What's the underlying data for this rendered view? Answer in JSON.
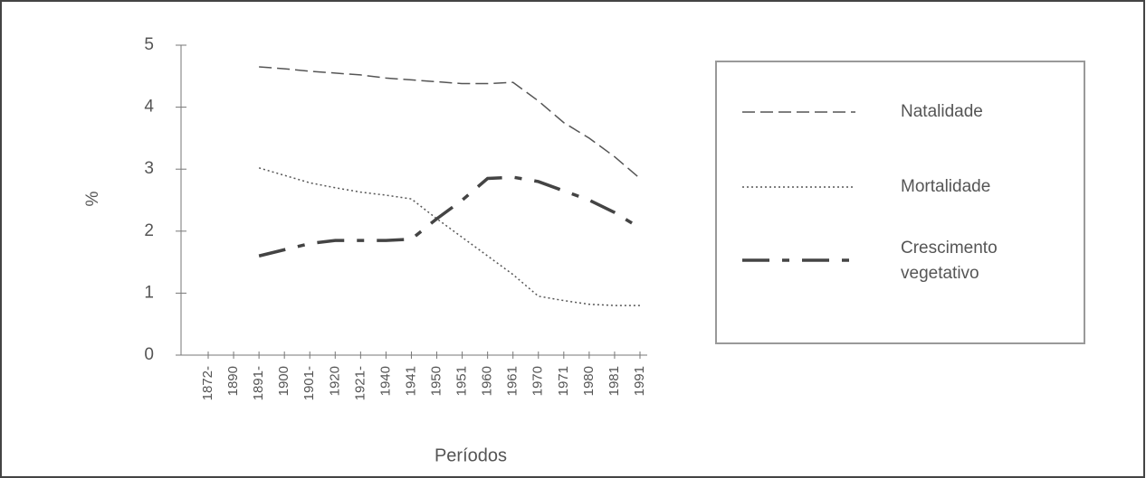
{
  "chart_data": {
    "type": "line",
    "xlabel": "Períodos",
    "ylabel": "%",
    "categories": [
      "1872-",
      "1890",
      "1891-",
      "1900",
      "1901-",
      "1920",
      "1921-",
      "1940",
      "1941",
      "1950",
      "1951",
      "1960",
      "1961",
      "1970",
      "1971",
      "1980",
      "1981",
      "1991"
    ],
    "ylim": [
      0,
      5
    ],
    "yticks": [
      0,
      1,
      2,
      3,
      4,
      5
    ],
    "series": [
      {
        "name": "Natalidade",
        "color": "#555555",
        "dash": "dashed",
        "values": [
          null,
          null,
          4.65,
          4.62,
          4.58,
          4.55,
          4.52,
          4.47,
          4.44,
          4.41,
          4.38,
          4.38,
          4.4,
          4.1,
          3.75,
          3.5,
          3.2,
          2.85
        ]
      },
      {
        "name": "Mortalidade",
        "color": "#555555",
        "dash": "dotted",
        "values": [
          null,
          null,
          3.02,
          2.9,
          2.78,
          2.7,
          2.63,
          2.58,
          2.52,
          2.2,
          1.9,
          1.6,
          1.3,
          0.95,
          0.88,
          0.82,
          0.8,
          0.8
        ]
      },
      {
        "name": "Crescimento vegetativo",
        "color": "#444444",
        "dash": "dashdot",
        "values": [
          null,
          null,
          1.6,
          1.7,
          1.8,
          1.85,
          1.85,
          1.85,
          1.87,
          2.2,
          2.5,
          2.85,
          2.87,
          2.8,
          2.65,
          2.5,
          2.3,
          2.05
        ]
      }
    ],
    "legend": "right"
  }
}
